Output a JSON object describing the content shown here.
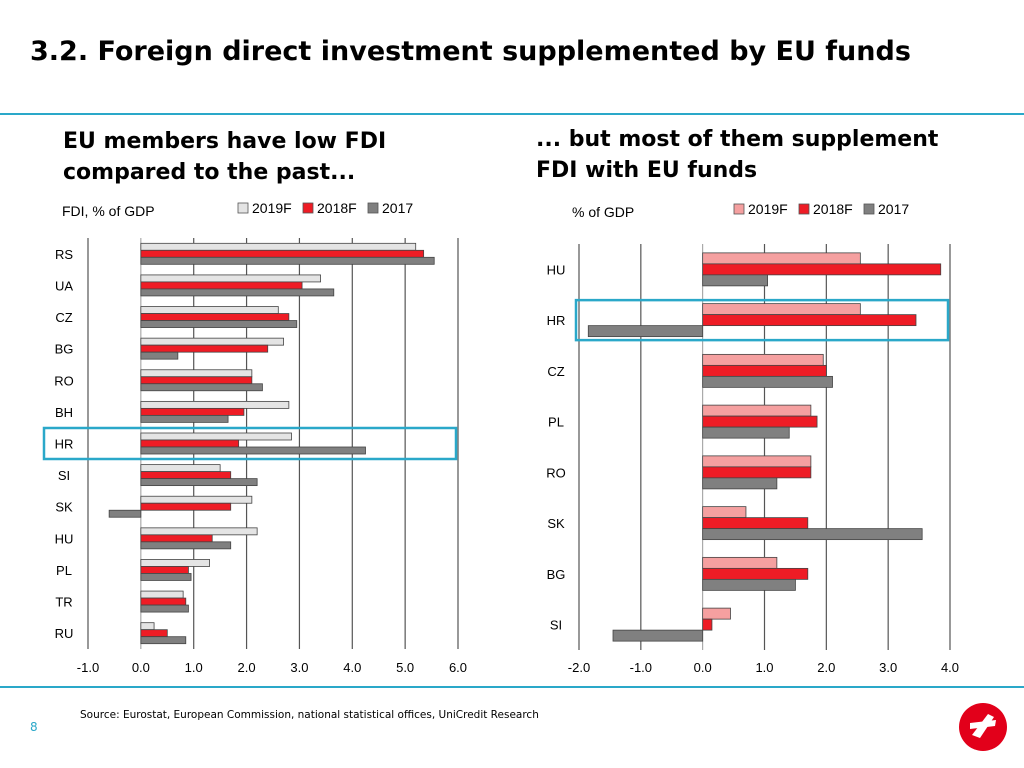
{
  "header": {
    "title": "3.2. Foreign direct investment supplemented by EU funds"
  },
  "left": {
    "subtitle_line1": "EU members have low FDI",
    "subtitle_line2": "compared to the past..."
  },
  "right": {
    "subtitle_line1": "... but most of them supplement",
    "subtitle_line2": "FDI with EU funds"
  },
  "footer": {
    "source": "Source: Eurostat, European Commission, national statistical offices, UniCredit Research",
    "page_number": "8"
  },
  "colors": {
    "accent": "#2aa8c9",
    "red": "#ee1c25",
    "grey": "#808080",
    "light_grey": "#e4e4e4",
    "pink": "#f5a0a0",
    "logo_red": "#e2001a"
  },
  "chart_data": [
    {
      "type": "bar",
      "orientation": "horizontal",
      "ylabel": "FDI, % of GDP",
      "categories": [
        "RS",
        "UA",
        "CZ",
        "BG",
        "RO",
        "BH",
        "HR",
        "SI",
        "SK",
        "HU",
        "PL",
        "TR",
        "RU"
      ],
      "series": [
        {
          "name": "2019F",
          "color": "#e4e4e4",
          "values": [
            5.2,
            3.4,
            2.6,
            2.7,
            2.1,
            2.8,
            2.85,
            1.5,
            2.1,
            2.2,
            1.3,
            0.8,
            0.25
          ]
        },
        {
          "name": "2018F",
          "color": "#ee1c25",
          "values": [
            5.35,
            3.05,
            2.8,
            2.4,
            2.1,
            1.95,
            1.85,
            1.7,
            1.7,
            1.35,
            0.9,
            0.85,
            0.5
          ]
        },
        {
          "name": "2017",
          "color": "#808080",
          "values": [
            5.55,
            3.65,
            2.95,
            0.7,
            2.3,
            1.65,
            4.25,
            2.2,
            -0.6,
            1.7,
            0.95,
            0.9,
            0.85
          ]
        }
      ],
      "xlim": [
        -1.0,
        6.0
      ],
      "xticks": [
        "-1.0",
        "0.0",
        "1.0",
        "2.0",
        "3.0",
        "4.0",
        "5.0",
        "6.0"
      ],
      "highlight": "HR",
      "legend": "top"
    },
    {
      "type": "bar",
      "orientation": "horizontal",
      "ylabel": "% of GDP",
      "categories": [
        "HU",
        "HR",
        "CZ",
        "PL",
        "RO",
        "SK",
        "BG",
        "SI"
      ],
      "series": [
        {
          "name": "2019F",
          "color": "#f5a0a0",
          "values": [
            2.55,
            2.55,
            1.95,
            1.75,
            1.75,
            0.7,
            1.2,
            0.45
          ]
        },
        {
          "name": "2018F",
          "color": "#ee1c25",
          "values": [
            3.85,
            3.45,
            2.0,
            1.85,
            1.75,
            1.7,
            1.7,
            0.15
          ]
        },
        {
          "name": "2017",
          "color": "#808080",
          "values": [
            1.05,
            -1.85,
            2.1,
            1.4,
            1.2,
            3.55,
            1.5,
            -1.45
          ]
        }
      ],
      "xlim": [
        -2.0,
        4.0
      ],
      "xticks": [
        "-2.0",
        "-1.0",
        "0.0",
        "1.0",
        "2.0",
        "3.0",
        "4.0"
      ],
      "highlight": "HR",
      "legend": "top"
    }
  ]
}
